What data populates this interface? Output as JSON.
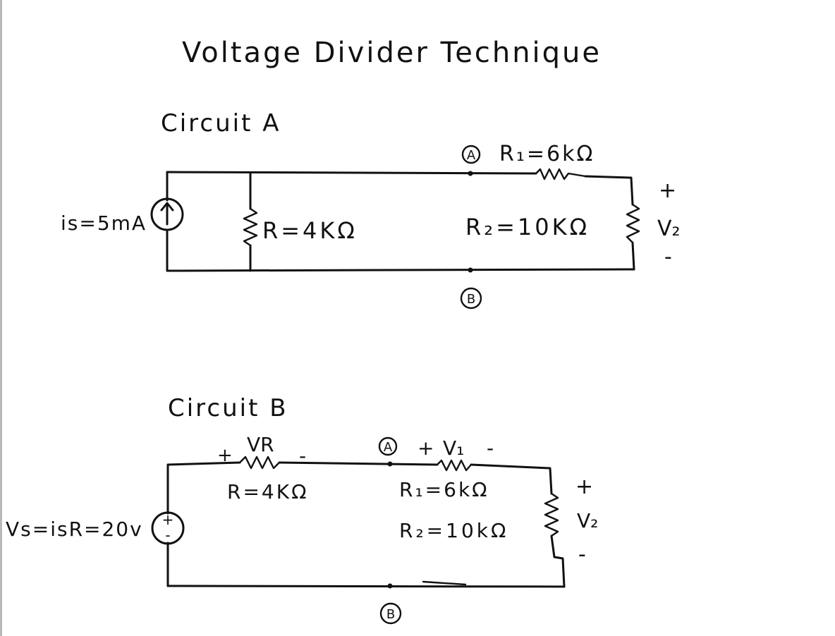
{
  "title": "Voltage Divider Technique",
  "circuit_a": {
    "heading": "Circuit A",
    "source_label": "is=5mA",
    "resistor_r_label": "R=4KΩ",
    "r1_label": "R₁=6kΩ",
    "r2_label": "R₂=10KΩ",
    "node_a": "A",
    "node_b": "B",
    "v2_plus": "+",
    "v2_label": "V₂",
    "v2_minus": "-"
  },
  "circuit_b": {
    "heading": "Circuit B",
    "source_label": "Vs=isR=20v",
    "source_plus": "+",
    "source_minus": "-",
    "vr_plus": "+",
    "vr_label": "VR",
    "vr_minus": "-",
    "resistor_r_label": "R=4KΩ",
    "node_a": "A",
    "node_b": "B",
    "v1_plus": "+",
    "v1_label": "V₁",
    "v1_minus": "-",
    "r1_label": "R₁=6kΩ",
    "r2_label": "R₂=10kΩ",
    "v2_plus": "+",
    "v2_label": "V₂",
    "v2_minus": "-"
  }
}
